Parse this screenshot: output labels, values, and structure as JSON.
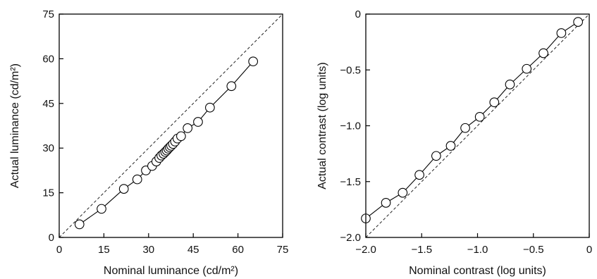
{
  "chart_data": [
    {
      "type": "line",
      "title": "",
      "xlabel": "Nominal luminance (cd/m²)",
      "ylabel": "Actual luminance (cd/m²)",
      "xlim": [
        0,
        75
      ],
      "ylim": [
        0,
        75
      ],
      "xticks": [
        0,
        15,
        30,
        45,
        60,
        75
      ],
      "yticks": [
        0,
        15,
        30,
        45,
        60,
        75
      ],
      "xtick_labels": [
        "0",
        "15",
        "30",
        "45",
        "60",
        "75"
      ],
      "ytick_labels": [
        "0",
        "15",
        "30",
        "45",
        "60",
        "75"
      ],
      "grid": false,
      "reference_line": "identity (y = x), dashed",
      "series": [
        {
          "marker": "open-circle",
          "x": [
            6.8,
            14.2,
            21.7,
            26.2,
            29.1,
            31.2,
            32.6,
            33.6,
            34.3,
            35.0,
            35.6,
            36.1,
            36.6,
            37.1,
            37.6,
            38.2,
            38.9,
            39.7,
            40.9,
            43.1,
            46.6,
            50.6,
            57.8,
            65.1
          ],
          "y": [
            4.4,
            9.6,
            16.3,
            19.5,
            22.5,
            24.0,
            25.5,
            26.7,
            27.5,
            28.1,
            28.7,
            29.2,
            29.8,
            30.3,
            30.8,
            31.4,
            32.2,
            33.2,
            34.0,
            36.7,
            38.8,
            43.6,
            50.8,
            59.1
          ]
        }
      ]
    },
    {
      "type": "line",
      "title": "",
      "xlabel": "Nominal contrast (log units)",
      "ylabel": "Actual contrast (log units)",
      "xlim": [
        -2.0,
        0.0
      ],
      "ylim": [
        -2.0,
        0.0
      ],
      "xticks": [
        -2.0,
        -1.5,
        -1.0,
        -0.5,
        0.0
      ],
      "yticks": [
        -2.0,
        -1.5,
        -1.0,
        -0.5,
        0.0
      ],
      "xtick_labels": [
        "−2.0",
        "−1.5",
        "−1.0",
        "−0.5",
        "0"
      ],
      "ytick_labels": [
        "−2.0",
        "−1.5",
        "−1.0",
        "−0.5",
        "0"
      ],
      "grid": false,
      "reference_line": "identity (y = x), dashed",
      "series": [
        {
          "marker": "open-circle",
          "x": [
            -2.0,
            -1.82,
            -1.67,
            -1.52,
            -1.37,
            -1.24,
            -1.11,
            -0.98,
            -0.85,
            -0.71,
            -0.56,
            -0.41,
            -0.25,
            -0.1
          ],
          "y": [
            -1.83,
            -1.69,
            -1.6,
            -1.44,
            -1.27,
            -1.18,
            -1.02,
            -0.92,
            -0.79,
            -0.63,
            -0.49,
            -0.35,
            -0.17,
            -0.07
          ]
        }
      ]
    }
  ]
}
